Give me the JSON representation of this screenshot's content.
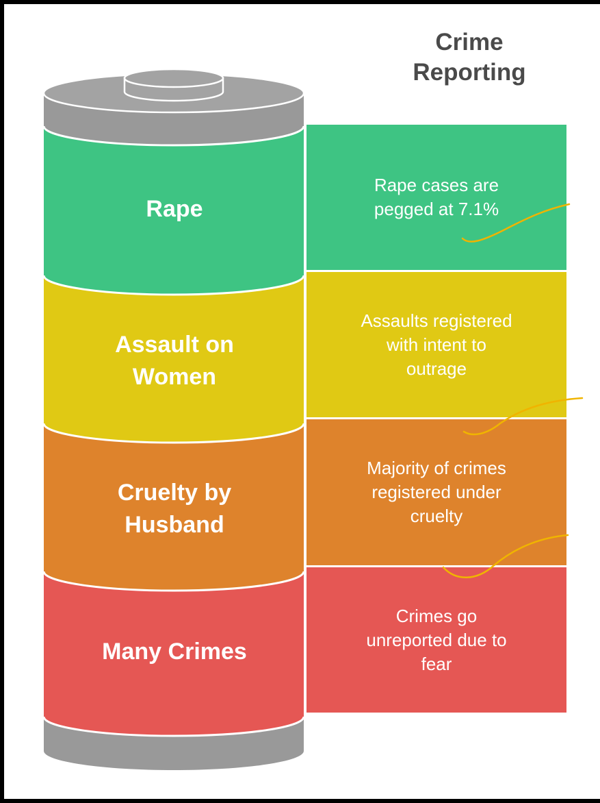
{
  "title": {
    "line1": "Crime",
    "line2": "Reporting"
  },
  "segments": [
    {
      "label_line1": "Rape",
      "label_line2": "",
      "color": "#3ec483",
      "desc_lines": [
        "Rape cases are",
        "pegged at 7.1%",
        ""
      ]
    },
    {
      "label_line1": "Assault on",
      "label_line2": "Women",
      "color": "#e0c914",
      "desc_lines": [
        "Assaults registered",
        "with intent to",
        "outrage"
      ]
    },
    {
      "label_line1": "Cruelty by",
      "label_line2": "Husband",
      "color": "#de832c",
      "desc_lines": [
        "Majority of crimes",
        "registered under",
        "cruelty"
      ]
    },
    {
      "label_line1": "Many Crimes",
      "label_line2": "",
      "color": "#e55754",
      "desc_lines": [
        "Crimes go",
        "unreported due to",
        "fear"
      ]
    }
  ],
  "colors": {
    "cap": "#a0a0a0",
    "cap_dark": "#8e8e8e",
    "annotation": "#f0b400"
  }
}
